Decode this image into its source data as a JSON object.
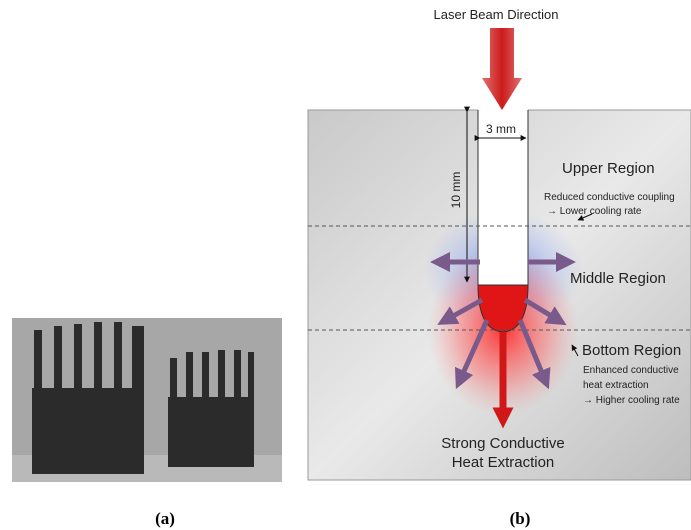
{
  "panel_a": {
    "caption": "(a)"
  },
  "panel_b": {
    "caption": "(b)",
    "laser_label": "Laser Beam Direction",
    "width_label": "3 mm",
    "depth_label": "10 mm",
    "upper": {
      "title": "Upper Region",
      "note_1": "Reduced conductive coupling",
      "note_2": "→ Lower cooling rate"
    },
    "middle": {
      "title": "Middle Region"
    },
    "bottom": {
      "title": "Bottom Region",
      "note_1": "Enhanced conductive",
      "note_2": "heat extraction",
      "note_3": "→ Higher cooling rate"
    },
    "extraction": {
      "line_1": "Strong Conductive",
      "line_2": "Heat Extraction"
    }
  }
}
